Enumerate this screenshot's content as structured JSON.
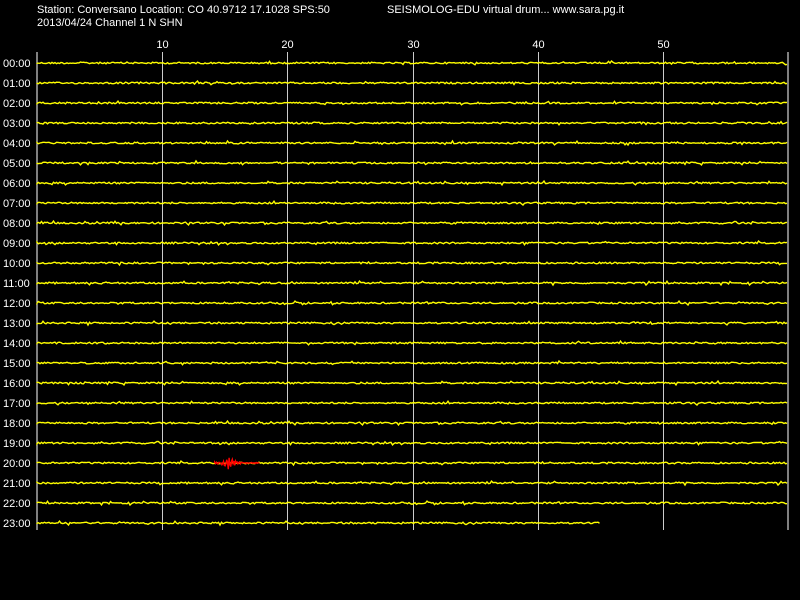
{
  "header": {
    "station_line": "Station: Conversano Location: CO 40.9712 17.1028 SPS:50",
    "date_line": "2013/04/24  Channel 1 N SHN",
    "brand": "SEISMOLOG-EDU virtual drum... www.sara.pg.it"
  },
  "colors": {
    "background": "#000000",
    "trace": "#ffff00",
    "event": "#ff0000",
    "grid": "#ffffff"
  },
  "chart_data": {
    "type": "line",
    "title": "",
    "xlabel": "",
    "ylabel": "",
    "x_unit_implied": "minutes",
    "xlim": [
      0,
      60
    ],
    "x_ticks": [
      10,
      20,
      30,
      40,
      50
    ],
    "x_tick_labels": [
      "10",
      "20",
      "30",
      "40",
      "50"
    ],
    "grid": true,
    "rows": [
      {
        "label": "00:00",
        "start": 0,
        "end": 60
      },
      {
        "label": "01:00",
        "start": 0,
        "end": 60
      },
      {
        "label": "02:00",
        "start": 0,
        "end": 60
      },
      {
        "label": "03:00",
        "start": 0,
        "end": 60
      },
      {
        "label": "04:00",
        "start": 0,
        "end": 60
      },
      {
        "label": "05:00",
        "start": 0,
        "end": 60
      },
      {
        "label": "06:00",
        "start": 0,
        "end": 60
      },
      {
        "label": "07:00",
        "start": 0,
        "end": 60
      },
      {
        "label": "08:00",
        "start": 0,
        "end": 60
      },
      {
        "label": "09:00",
        "start": 0,
        "end": 60
      },
      {
        "label": "10:00",
        "start": 0,
        "end": 60
      },
      {
        "label": "11:00",
        "start": 0,
        "end": 60
      },
      {
        "label": "12:00",
        "start": 0,
        "end": 60
      },
      {
        "label": "13:00",
        "start": 0,
        "end": 60
      },
      {
        "label": "14:00",
        "start": 0,
        "end": 60
      },
      {
        "label": "15:00",
        "start": 0,
        "end": 60
      },
      {
        "label": "16:00",
        "start": 0,
        "end": 60
      },
      {
        "label": "17:00",
        "start": 0,
        "end": 60
      },
      {
        "label": "18:00",
        "start": 0,
        "end": 60
      },
      {
        "label": "19:00",
        "start": 0,
        "end": 60
      },
      {
        "label": "20:00",
        "start": 0,
        "end": 60,
        "event": {
          "start": 14.2,
          "end": 17.8,
          "peak": 15.3
        }
      },
      {
        "label": "21:00",
        "start": 0,
        "end": 60
      },
      {
        "label": "22:00",
        "start": 0,
        "end": 60
      },
      {
        "label": "23:00",
        "start": 0,
        "end": 45
      }
    ]
  }
}
